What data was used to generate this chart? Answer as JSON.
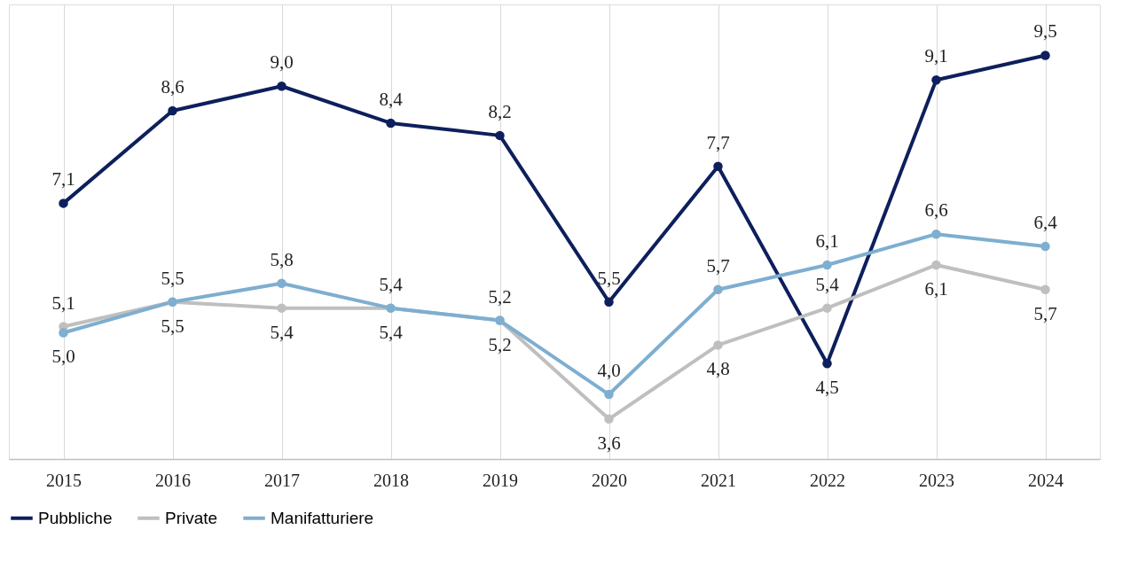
{
  "chart_data": {
    "type": "line",
    "categories": [
      "2015",
      "2016",
      "2017",
      "2018",
      "2019",
      "2020",
      "2021",
      "2022",
      "2023",
      "2024"
    ],
    "series": [
      {
        "name": "Pubbliche",
        "color": "#0d1f5c",
        "values": [
          7.1,
          8.6,
          9.0,
          8.4,
          8.2,
          5.5,
          7.7,
          4.5,
          9.1,
          9.5
        ],
        "value_labels": [
          "7,1",
          "8,6",
          "9,0",
          "8,4",
          "8,2",
          "5,5",
          "7,7",
          "4,5",
          "9,1",
          "9,5"
        ]
      },
      {
        "name": "Private",
        "color": "#bfbfbf",
        "values": [
          5.1,
          5.5,
          5.4,
          5.4,
          5.2,
          3.6,
          4.8,
          5.4,
          6.1,
          5.7
        ],
        "value_labels": [
          "5,1",
          "5,5",
          "5,4",
          "5,4",
          "5,2",
          "3,6",
          "4,8",
          "5,4",
          "6,1",
          "5,7"
        ]
      },
      {
        "name": "Manifatturiere",
        "color": "#7eaed0",
        "values": [
          5.0,
          5.5,
          5.8,
          5.4,
          5.2,
          4.0,
          5.7,
          6.1,
          6.6,
          6.4
        ],
        "value_labels": [
          "5,0",
          "5,5",
          "5,8",
          "5,4",
          "5,2",
          "4,0",
          "5,7",
          "6,1",
          "6,6",
          "6,4"
        ]
      }
    ],
    "tick_labels": "x",
    "grid": "x",
    "legend": "bottom",
    "marker": "circle",
    "line_style": "solid"
  }
}
